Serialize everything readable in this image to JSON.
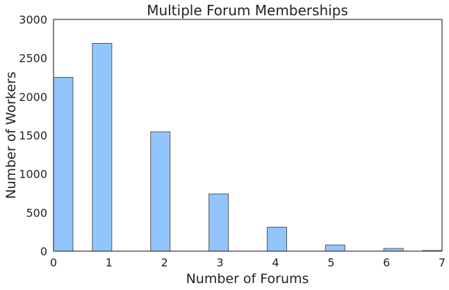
{
  "chart_data": {
    "type": "bar",
    "title": "Multiple Forum Memberships",
    "xlabel": "Number of Forums",
    "ylabel": "Number of Workers",
    "xlim": [
      0,
      7
    ],
    "ylim": [
      0,
      3000
    ],
    "x_ticks": [
      "0",
      "1",
      "2",
      "3",
      "4",
      "5",
      "6",
      "7"
    ],
    "y_ticks": [
      "0",
      "500",
      "1000",
      "1500",
      "2000",
      "2500",
      "3000"
    ],
    "bins": [
      {
        "start": 0.0,
        "end": 0.35,
        "value": 2250
      },
      {
        "start": 0.7,
        "end": 1.05,
        "value": 2690
      },
      {
        "start": 1.75,
        "end": 2.1,
        "value": 1545
      },
      {
        "start": 2.8,
        "end": 3.15,
        "value": 740
      },
      {
        "start": 3.85,
        "end": 4.2,
        "value": 310
      },
      {
        "start": 4.9,
        "end": 5.25,
        "value": 80
      },
      {
        "start": 5.95,
        "end": 6.3,
        "value": 35
      },
      {
        "start": 6.65,
        "end": 7.0,
        "value": 8
      }
    ],
    "bar_color": "#93c5fd",
    "grid": false
  }
}
